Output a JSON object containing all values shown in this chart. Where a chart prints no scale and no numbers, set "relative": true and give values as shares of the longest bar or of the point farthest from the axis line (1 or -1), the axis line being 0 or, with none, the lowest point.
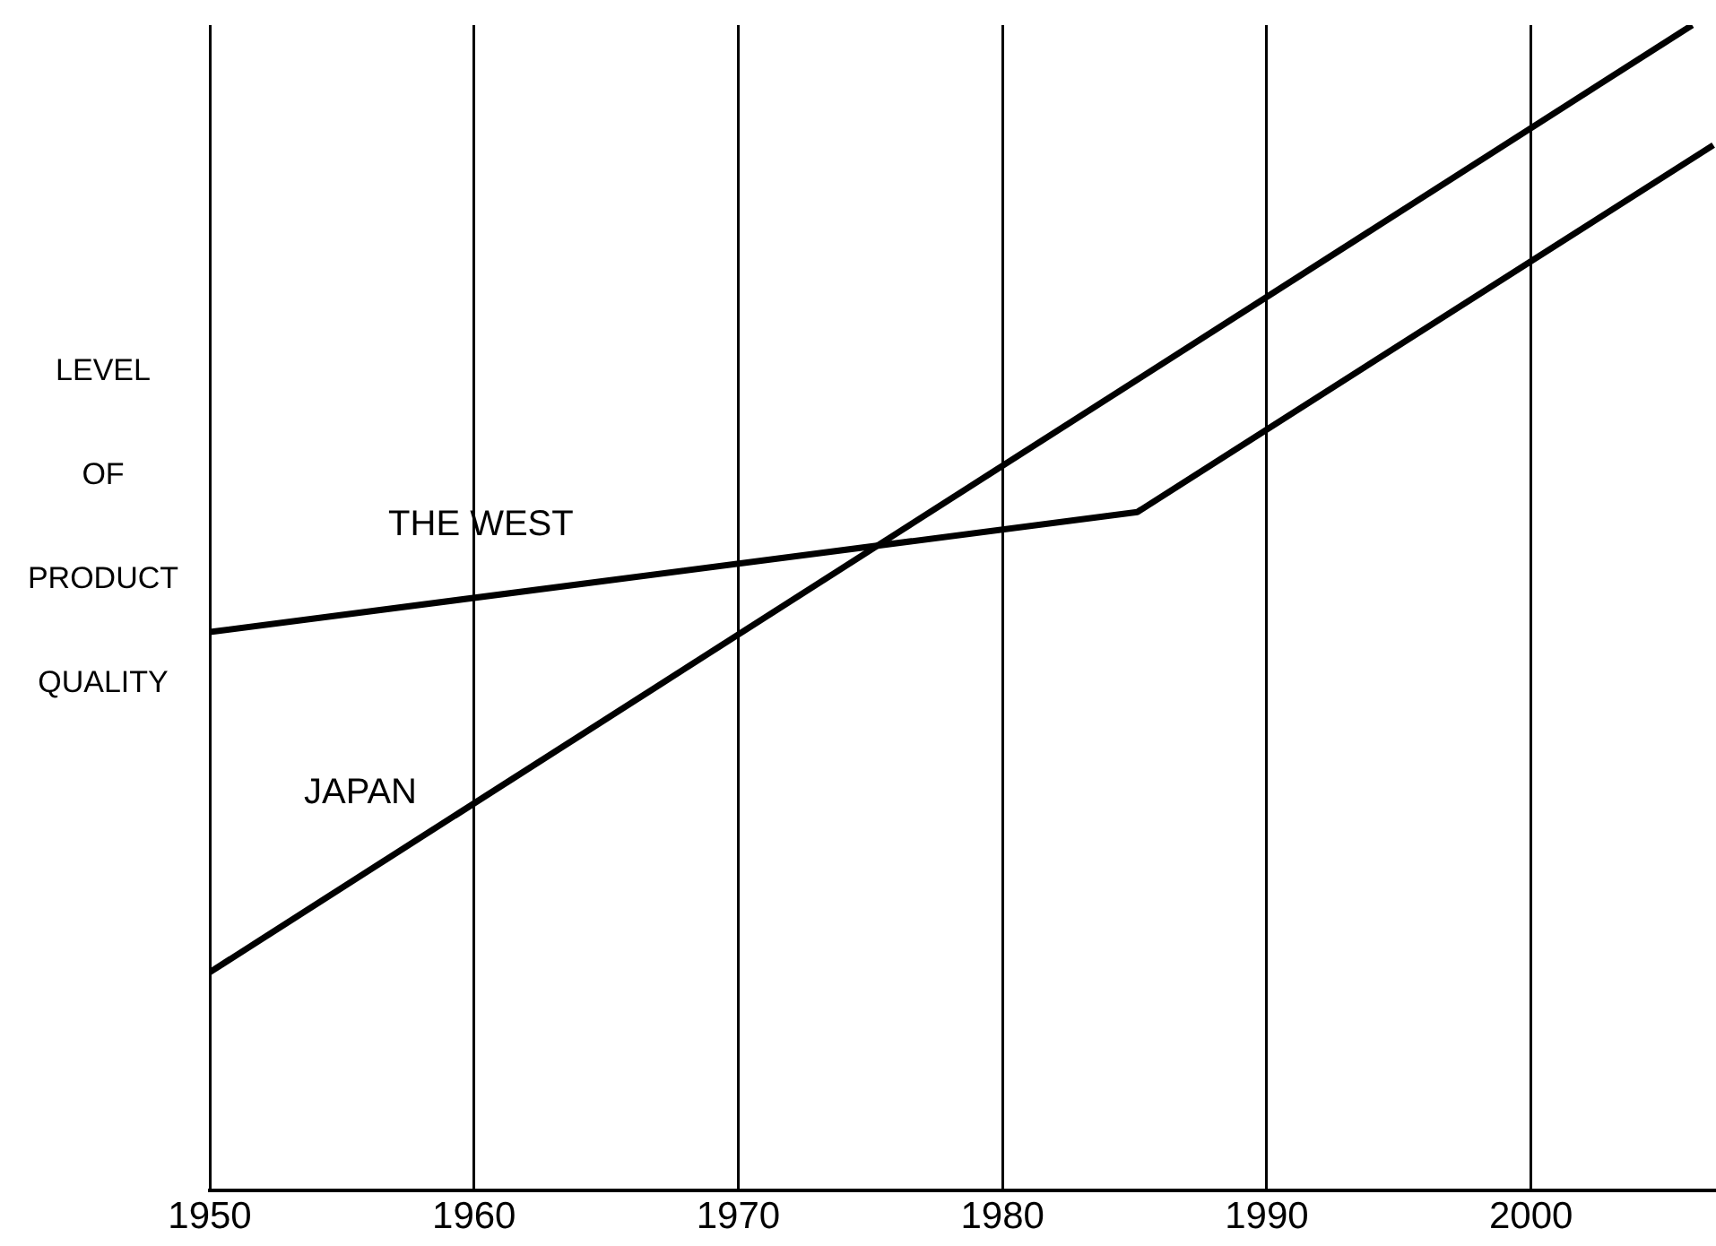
{
  "chart_data": {
    "type": "line",
    "relative": true,
    "ylabel": "LEVEL OF PRODUCT QUALITY",
    "xlim": [
      1950,
      2007
    ],
    "xticks": [
      1950,
      1960,
      1970,
      1980,
      1990,
      2000
    ],
    "grid": "x",
    "legend": false,
    "marker": "none",
    "line_style": "solid",
    "series": [
      {
        "name": "THE WEST",
        "color": "#000000",
        "x": [
          1950,
          1985.1,
          2006.9
        ],
        "values": [
          0.479,
          0.582,
          0.897
        ]
      },
      {
        "name": "JAPAN",
        "color": "#000000",
        "x": [
          1950,
          2006.1
        ],
        "values": [
          0.187,
          1
        ]
      }
    ]
  }
}
